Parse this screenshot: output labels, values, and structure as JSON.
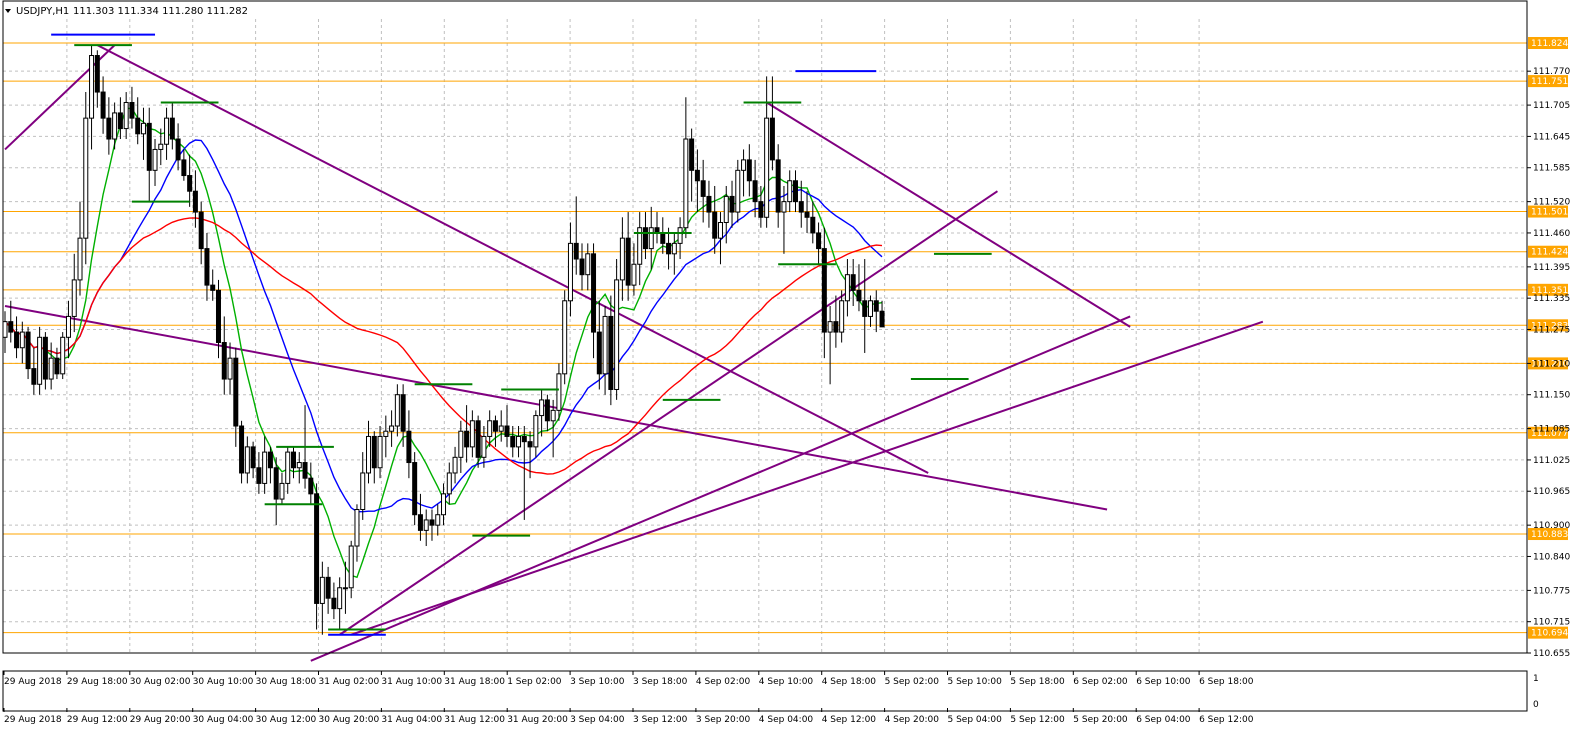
{
  "header": {
    "symbol_timeframe": "USDJPY,H1",
    "quote": "111.303 111.334 111.280 111.282",
    "collapse_icon": "triangle-down-icon"
  },
  "colors": {
    "background": "#ffffff",
    "grid": "#c0c0c0",
    "candle": "#000000",
    "ma_fast": "#00b000",
    "ma_mid": "#0000ff",
    "ma_slow": "#ff0000",
    "trendline": "#800080",
    "level_line": "#ffa500",
    "level_label_bg": "#ffa500",
    "marker_blue": "#0000ff",
    "marker_green": "#008000"
  },
  "chart_data": {
    "type": "candlestick",
    "price_axis": {
      "ylim": [
        110.655,
        111.87
      ],
      "ticks": [
        "111.770",
        "111.705",
        "111.645",
        "111.585",
        "111.520",
        "111.460",
        "111.395",
        "111.335",
        "111.275",
        "111.210",
        "111.150",
        "111.085",
        "111.025",
        "110.965",
        "110.900",
        "110.840",
        "110.775",
        "110.715",
        "110.655"
      ]
    },
    "levels": [
      {
        "price": 111.824,
        "label": "111.824"
      },
      {
        "price": 111.751,
        "label": "111.751"
      },
      {
        "price": 111.501,
        "label": "111.501"
      },
      {
        "price": 111.424,
        "label": "111.424"
      },
      {
        "price": 111.351,
        "label": "111.351"
      },
      {
        "price": 111.283,
        "label": "111.283"
      },
      {
        "price": 111.21,
        "label": "111.210"
      },
      {
        "price": 111.077,
        "label": "111.077"
      },
      {
        "price": 110.883,
        "label": "110.883"
      },
      {
        "price": 110.694,
        "label": "110.694"
      }
    ],
    "time_axis_top": [
      "29 Aug 2018",
      "29 Aug 18:00",
      "30 Aug 02:00",
      "30 Aug 10:00",
      "30 Aug 18:00",
      "31 Aug 02:00",
      "31 Aug 10:00",
      "31 Aug 18:00",
      "1 Sep 02:00",
      "3 Sep 10:00",
      "3 Sep 18:00",
      "4 Sep 02:00",
      "4 Sep 10:00",
      "4 Sep 18:00",
      "5 Sep 02:00",
      "5 Sep 10:00",
      "5 Sep 18:00",
      "6 Sep 02:00",
      "6 Sep 10:00",
      "6 Sep 18:00"
    ],
    "time_axis_bottom": [
      "29 Aug 2018",
      "29 Aug 12:00",
      "29 Aug 20:00",
      "30 Aug 04:00",
      "30 Aug 12:00",
      "30 Aug 20:00",
      "31 Aug 04:00",
      "31 Aug 12:00",
      "31 Aug 20:00",
      "3 Sep 04:00",
      "3 Sep 12:00",
      "3 Sep 20:00",
      "4 Sep 04:00",
      "4 Sep 12:00",
      "4 Sep 20:00",
      "5 Sep 04:00",
      "5 Sep 12:00",
      "5 Sep 20:00",
      "6 Sep 04:00",
      "6 Sep 12:00"
    ],
    "indicator_axis": [
      "1",
      "0"
    ],
    "candles": [
      [
        111.26,
        111.31,
        111.23,
        111.29
      ],
      [
        111.29,
        111.33,
        111.25,
        111.27
      ],
      [
        111.27,
        111.3,
        111.22,
        111.24
      ],
      [
        111.24,
        111.29,
        111.21,
        111.27
      ],
      [
        111.27,
        111.28,
        111.18,
        111.2
      ],
      [
        111.2,
        111.24,
        111.15,
        111.17
      ],
      [
        111.17,
        111.28,
        111.15,
        111.26
      ],
      [
        111.26,
        111.27,
        111.16,
        111.18
      ],
      [
        111.18,
        111.25,
        111.16,
        111.22
      ],
      [
        111.22,
        111.24,
        111.18,
        111.19
      ],
      [
        111.19,
        111.27,
        111.18,
        111.26
      ],
      [
        111.26,
        111.33,
        111.22,
        111.3
      ],
      [
        111.3,
        111.42,
        111.27,
        111.37
      ],
      [
        111.37,
        111.52,
        111.34,
        111.45
      ],
      [
        111.45,
        111.73,
        111.4,
        111.68
      ],
      [
        111.68,
        111.82,
        111.62,
        111.8
      ],
      [
        111.8,
        111.81,
        111.7,
        111.73
      ],
      [
        111.73,
        111.76,
        111.65,
        111.68
      ],
      [
        111.68,
        111.72,
        111.61,
        111.64
      ],
      [
        111.64,
        111.71,
        111.62,
        111.69
      ],
      [
        111.69,
        111.72,
        111.64,
        111.66
      ],
      [
        111.66,
        111.73,
        111.64,
        111.71
      ],
      [
        111.71,
        111.74,
        111.66,
        111.68
      ],
      [
        111.68,
        111.72,
        111.63,
        111.65
      ],
      [
        111.65,
        111.7,
        111.6,
        111.67
      ],
      [
        111.67,
        111.7,
        111.52,
        111.58
      ],
      [
        111.58,
        111.64,
        111.55,
        111.62
      ],
      [
        111.62,
        111.66,
        111.59,
        111.63
      ],
      [
        111.63,
        111.7,
        111.6,
        111.68
      ],
      [
        111.68,
        111.71,
        111.62,
        111.64
      ],
      [
        111.64,
        111.67,
        111.58,
        111.6
      ],
      [
        111.6,
        111.62,
        111.56,
        111.57
      ],
      [
        111.57,
        111.61,
        111.51,
        111.54
      ],
      [
        111.54,
        111.58,
        111.47,
        111.5
      ],
      [
        111.5,
        111.52,
        111.4,
        111.43
      ],
      [
        111.43,
        111.46,
        111.33,
        111.36
      ],
      [
        111.36,
        111.39,
        111.33,
        111.35
      ],
      [
        111.35,
        111.37,
        111.22,
        111.25
      ],
      [
        111.25,
        111.3,
        111.15,
        111.18
      ],
      [
        111.18,
        111.25,
        111.15,
        111.22
      ],
      [
        111.22,
        111.24,
        111.05,
        111.09
      ],
      [
        111.09,
        111.1,
        110.98,
        111.0
      ],
      [
        111.0,
        111.07,
        110.98,
        111.05
      ],
      [
        111.05,
        111.06,
        110.99,
        111.01
      ],
      [
        111.01,
        111.04,
        110.96,
        110.98
      ],
      [
        110.98,
        111.07,
        110.96,
        111.04
      ],
      [
        111.04,
        111.05,
        110.98,
        111.01
      ],
      [
        111.01,
        111.03,
        110.9,
        110.95
      ],
      [
        110.95,
        111.0,
        110.94,
        110.98
      ],
      [
        110.98,
        111.05,
        110.96,
        111.04
      ],
      [
        111.04,
        111.05,
        110.99,
        111.01
      ],
      [
        111.01,
        111.04,
        110.98,
        111.02
      ],
      [
        111.02,
        111.13,
        110.97,
        110.99
      ],
      [
        110.99,
        111.02,
        110.94,
        110.96
      ],
      [
        110.96,
        110.98,
        110.7,
        110.75
      ],
      [
        110.75,
        110.83,
        110.69,
        110.8
      ],
      [
        110.8,
        110.82,
        110.73,
        110.76
      ],
      [
        110.76,
        110.79,
        110.72,
        110.74
      ],
      [
        110.74,
        110.8,
        110.7,
        110.78
      ],
      [
        110.78,
        110.83,
        110.73,
        110.78
      ],
      [
        110.78,
        110.87,
        110.76,
        110.86
      ],
      [
        110.86,
        110.94,
        110.83,
        110.93
      ],
      [
        110.93,
        111.04,
        110.91,
        111.0
      ],
      [
        111.0,
        111.1,
        110.98,
        111.07
      ],
      [
        111.07,
        111.08,
        110.98,
        111.01
      ],
      [
        111.01,
        111.09,
        110.99,
        111.07
      ],
      [
        111.07,
        111.11,
        111.03,
        111.08
      ],
      [
        111.08,
        111.12,
        111.05,
        111.09
      ],
      [
        111.09,
        111.17,
        111.07,
        111.15
      ],
      [
        111.15,
        111.17,
        111.05,
        111.08
      ],
      [
        111.08,
        111.12,
        110.99,
        111.02
      ],
      [
        111.02,
        111.04,
        110.9,
        110.92
      ],
      [
        110.92,
        110.96,
        110.87,
        110.89
      ],
      [
        110.89,
        110.93,
        110.86,
        110.91
      ],
      [
        110.91,
        110.93,
        110.87,
        110.9
      ],
      [
        110.9,
        110.94,
        110.88,
        110.92
      ],
      [
        110.92,
        110.98,
        110.9,
        110.96
      ],
      [
        110.96,
        111.02,
        110.94,
        111.0
      ],
      [
        111.0,
        111.05,
        110.98,
        111.03
      ],
      [
        111.03,
        111.1,
        111.0,
        111.08
      ],
      [
        111.08,
        111.13,
        111.02,
        111.05
      ],
      [
        111.05,
        111.12,
        111.03,
        111.1
      ],
      [
        111.1,
        111.11,
        111.01,
        111.03
      ],
      [
        111.03,
        111.09,
        111.01,
        111.07
      ],
      [
        111.07,
        111.12,
        111.05,
        111.1
      ],
      [
        111.1,
        111.11,
        111.05,
        111.08
      ],
      [
        111.08,
        111.12,
        111.06,
        111.09
      ],
      [
        111.09,
        111.13,
        111.05,
        111.07
      ],
      [
        111.07,
        111.09,
        111.03,
        111.05
      ],
      [
        111.05,
        111.09,
        111.03,
        111.07
      ],
      [
        111.07,
        111.09,
        110.91,
        111.06
      ],
      [
        111.06,
        111.08,
        110.99,
        111.05
      ],
      [
        111.05,
        111.12,
        111.03,
        111.11
      ],
      [
        111.11,
        111.16,
        111.07,
        111.14
      ],
      [
        111.14,
        111.15,
        111.08,
        111.1
      ],
      [
        111.1,
        111.14,
        111.03,
        111.12
      ],
      [
        111.12,
        111.21,
        111.1,
        111.19
      ],
      [
        111.19,
        111.35,
        111.17,
        111.33
      ],
      [
        111.33,
        111.48,
        111.3,
        111.44
      ],
      [
        111.44,
        111.53,
        111.38,
        111.41
      ],
      [
        111.41,
        111.44,
        111.35,
        111.38
      ],
      [
        111.38,
        111.44,
        111.35,
        111.42
      ],
      [
        111.42,
        111.44,
        111.22,
        111.27
      ],
      [
        111.27,
        111.33,
        111.16,
        111.19
      ],
      [
        111.19,
        111.32,
        111.15,
        111.3
      ],
      [
        111.3,
        111.34,
        111.13,
        111.16
      ],
      [
        111.16,
        111.41,
        111.14,
        111.37
      ],
      [
        111.37,
        111.49,
        111.33,
        111.45
      ],
      [
        111.45,
        111.5,
        111.33,
        111.36
      ],
      [
        111.36,
        111.44,
        111.34,
        111.4
      ],
      [
        111.4,
        111.5,
        111.36,
        111.47
      ],
      [
        111.47,
        111.5,
        111.41,
        111.43
      ],
      [
        111.43,
        111.51,
        111.39,
        111.47
      ],
      [
        111.47,
        111.5,
        111.44,
        111.46
      ],
      [
        111.46,
        111.49,
        111.42,
        111.44
      ],
      [
        111.44,
        111.47,
        111.39,
        111.42
      ],
      [
        111.42,
        111.46,
        111.38,
        111.44
      ],
      [
        111.44,
        111.49,
        111.41,
        111.47
      ],
      [
        111.47,
        111.72,
        111.45,
        111.64
      ],
      [
        111.64,
        111.66,
        111.52,
        111.58
      ],
      [
        111.58,
        111.62,
        111.5,
        111.56
      ],
      [
        111.56,
        111.6,
        111.48,
        111.53
      ],
      [
        111.53,
        111.56,
        111.47,
        111.5
      ],
      [
        111.5,
        111.55,
        111.42,
        111.45
      ],
      [
        111.45,
        111.5,
        111.4,
        111.48
      ],
      [
        111.48,
        111.55,
        111.44,
        111.53
      ],
      [
        111.53,
        111.56,
        111.47,
        111.5
      ],
      [
        111.5,
        111.6,
        111.48,
        111.58
      ],
      [
        111.58,
        111.62,
        111.53,
        111.6
      ],
      [
        111.6,
        111.63,
        111.53,
        111.56
      ],
      [
        111.56,
        111.6,
        111.49,
        111.52
      ],
      [
        111.52,
        111.55,
        111.47,
        111.49
      ],
      [
        111.49,
        111.76,
        111.47,
        111.68
      ],
      [
        111.68,
        111.76,
        111.58,
        111.6
      ],
      [
        111.6,
        111.63,
        111.47,
        111.5
      ],
      [
        111.5,
        111.55,
        111.42,
        111.52
      ],
      [
        111.52,
        111.58,
        111.5,
        111.56
      ],
      [
        111.56,
        111.58,
        111.5,
        111.52
      ],
      [
        111.52,
        111.56,
        111.47,
        111.5
      ],
      [
        111.5,
        111.54,
        111.46,
        111.49
      ],
      [
        111.49,
        111.52,
        111.44,
        111.46
      ],
      [
        111.46,
        111.48,
        111.4,
        111.43
      ],
      [
        111.43,
        111.47,
        111.22,
        111.27
      ],
      [
        111.27,
        111.32,
        111.17,
        111.29
      ],
      [
        111.29,
        111.34,
        111.24,
        111.27
      ],
      [
        111.27,
        111.35,
        111.25,
        111.33
      ],
      [
        111.33,
        111.41,
        111.3,
        111.38
      ],
      [
        111.38,
        111.41,
        111.32,
        111.35
      ],
      [
        111.35,
        111.4,
        111.31,
        111.33
      ],
      [
        111.33,
        111.41,
        111.23,
        111.3
      ],
      [
        111.3,
        111.34,
        111.28,
        111.33
      ],
      [
        111.33,
        111.35,
        111.27,
        111.31
      ],
      [
        111.31,
        111.33,
        111.28,
        111.28
      ]
    ],
    "moving_averages": [
      {
        "color": "#00b000",
        "period": 8
      },
      {
        "color": "#0000ff",
        "period": 21
      },
      {
        "color": "#ff0000",
        "period": 55
      }
    ],
    "trendlines": [
      {
        "from": [
          0,
          111.62
        ],
        "to": [
          19,
          111.82
        ]
      },
      {
        "from": [
          16,
          111.82
        ],
        "to": [
          160,
          111.0
        ]
      },
      {
        "from": [
          0,
          111.32
        ],
        "to": [
          191,
          110.93
        ]
      },
      {
        "from": [
          58,
          110.69
        ],
        "to": [
          172,
          111.54
        ]
      },
      {
        "from": [
          53,
          110.64
        ],
        "to": [
          195,
          111.3
        ]
      },
      {
        "from": [
          60,
          110.69
        ],
        "to": [
          218,
          111.29
        ]
      },
      {
        "from": [
          132,
          111.71
        ],
        "to": [
          195,
          111.28
        ]
      }
    ],
    "markers": [
      {
        "color": "#0000ff",
        "index": 17,
        "price": 111.84,
        "half_width": 9
      },
      {
        "color": "#008000",
        "index": 17,
        "price": 111.82,
        "half_width": 5
      },
      {
        "color": "#008000",
        "index": 32,
        "price": 111.71,
        "half_width": 5
      },
      {
        "color": "#008000",
        "index": 27,
        "price": 111.52,
        "half_width": 5
      },
      {
        "color": "#008000",
        "index": 52,
        "price": 111.05,
        "half_width": 5
      },
      {
        "color": "#008000",
        "index": 50,
        "price": 110.94,
        "half_width": 5
      },
      {
        "color": "#0000ff",
        "index": 61,
        "price": 110.69,
        "half_width": 5
      },
      {
        "color": "#008000",
        "index": 61,
        "price": 110.7,
        "half_width": 5
      },
      {
        "color": "#008000",
        "index": 76,
        "price": 111.17,
        "half_width": 5
      },
      {
        "color": "#008000",
        "index": 91,
        "price": 111.16,
        "half_width": 5
      },
      {
        "color": "#008000",
        "index": 86,
        "price": 110.88,
        "half_width": 5
      },
      {
        "color": "#008000",
        "index": 114,
        "price": 111.46,
        "half_width": 5
      },
      {
        "color": "#008000",
        "index": 119,
        "price": 111.14,
        "half_width": 5
      },
      {
        "color": "#008000",
        "index": 133,
        "price": 111.71,
        "half_width": 5
      },
      {
        "color": "#008000",
        "index": 139,
        "price": 111.4,
        "half_width": 5
      },
      {
        "color": "#0000ff",
        "index": 144,
        "price": 111.77,
        "half_width": 7
      },
      {
        "color": "#008000",
        "index": 162,
        "price": 111.18,
        "half_width": 5
      },
      {
        "color": "#008000",
        "index": 166,
        "price": 111.42,
        "half_width": 5
      }
    ]
  }
}
